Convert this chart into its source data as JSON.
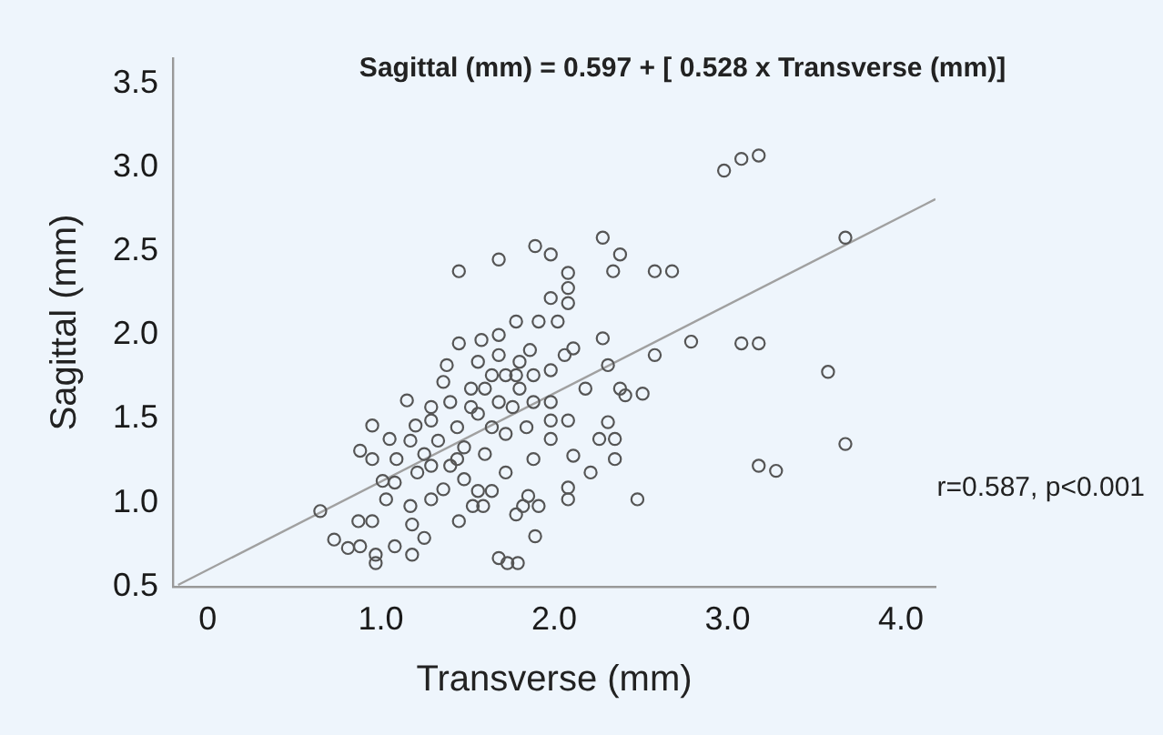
{
  "chart_data": {
    "type": "scatter",
    "title": "Sagittal (mm) = 0.597 + [ 0.528 x Transverse (mm)]",
    "xlabel": "Transverse (mm)",
    "ylabel": "Sagittal (mm)",
    "annotations": [
      "r=0.587, p<0.001"
    ],
    "xlim": [
      -0.2,
      4.2
    ],
    "xticks": [
      0,
      {
        "value": 1,
        "label": "1.0"
      },
      {
        "value": 2,
        "label": "2.0"
      },
      {
        "value": 3,
        "label": "3.0"
      },
      {
        "value": 4,
        "label": "4.0"
      }
    ],
    "ylim": [
      0.5,
      3.65
    ],
    "yticks": [
      0.5,
      {
        "value": 1,
        "label": "1.0"
      },
      1.5,
      {
        "value": 2,
        "label": "2.0"
      },
      2.5,
      {
        "value": 3,
        "label": "3.0"
      },
      3.5
    ],
    "grid": false,
    "legend": false,
    "marker": "circle",
    "series": [
      {
        "color": "#555555",
        "x": [
          2.98,
          3.08,
          3.18,
          3.68,
          1.45,
          1.68,
          1.89,
          1.98,
          2.08,
          2.28,
          2.38,
          2.34,
          2.58,
          2.68,
          2.08,
          1.98,
          2.08,
          2.79,
          3.08,
          3.18,
          2.58,
          2.28,
          2.31,
          3.58,
          3.68,
          3.18,
          3.28,
          2.48,
          2.18,
          2.38,
          2.51,
          2.41,
          2.31,
          2.26,
          2.35,
          2.35,
          2.11,
          2.21,
          2.08,
          2.08,
          1.91,
          1.82,
          1.85,
          1.78,
          1.89,
          1.68,
          1.73,
          1.79,
          1.45,
          1.53,
          1.59,
          0.65,
          0.73,
          0.81,
          0.88,
          0.97,
          0.97,
          1.08,
          1.18,
          1.25,
          1.18,
          0.87,
          0.95,
          1.03,
          1.01,
          1.08,
          0.88,
          0.95,
          0.95,
          1.05,
          1.15,
          1.2,
          1.29,
          1.38,
          1.45,
          1.58,
          1.68,
          1.78,
          1.91,
          2.02,
          1.86,
          1.98,
          2.11,
          2.06,
          1.98,
          1.98,
          2.08,
          1.98,
          1.88,
          1.72,
          1.64,
          1.56,
          1.48,
          1.36,
          1.29,
          1.21,
          1.17,
          1.29,
          1.33,
          1.44,
          1.56,
          1.68,
          1.8,
          1.88,
          1.64,
          1.52,
          1.4,
          1.29,
          1.48,
          1.6,
          1.72,
          1.84,
          1.76,
          1.56,
          1.68,
          1.8,
          1.4,
          1.25,
          1.17,
          1.36,
          1.52,
          1.64,
          1.78,
          1.44,
          1.09,
          1.6,
          1.72,
          1.88
        ],
        "values": [
          2.98,
          3.05,
          3.07,
          2.58,
          2.38,
          2.45,
          2.53,
          2.48,
          2.37,
          2.58,
          2.48,
          2.38,
          2.38,
          2.38,
          2.28,
          2.22,
          2.19,
          1.96,
          1.95,
          1.95,
          1.88,
          1.98,
          1.82,
          1.78,
          1.35,
          1.22,
          1.19,
          1.02,
          1.68,
          1.68,
          1.65,
          1.64,
          1.48,
          1.38,
          1.38,
          1.26,
          1.28,
          1.18,
          1.09,
          1.02,
          0.98,
          0.98,
          1.04,
          0.93,
          0.8,
          0.67,
          0.64,
          0.64,
          0.89,
          0.98,
          0.98,
          0.95,
          0.78,
          0.73,
          0.74,
          0.64,
          0.69,
          0.74,
          0.69,
          0.79,
          0.87,
          0.89,
          0.89,
          1.02,
          1.13,
          1.12,
          1.31,
          1.26,
          1.46,
          1.38,
          1.61,
          1.46,
          1.57,
          1.82,
          1.95,
          1.97,
          2.0,
          2.08,
          2.08,
          2.08,
          1.91,
          1.79,
          1.92,
          1.88,
          1.6,
          1.49,
          1.49,
          1.38,
          1.26,
          1.18,
          1.07,
          1.07,
          1.14,
          1.08,
          1.22,
          1.18,
          0.98,
          1.02,
          1.37,
          1.45,
          1.53,
          1.6,
          1.68,
          1.76,
          1.76,
          1.68,
          1.6,
          1.49,
          1.33,
          1.29,
          1.41,
          1.45,
          1.57,
          1.84,
          1.88,
          1.84,
          1.22,
          1.29,
          1.37,
          1.72,
          1.57,
          1.45,
          1.76,
          1.26,
          1.26,
          1.68,
          1.76,
          1.6
        ]
      },
      {
        "type": "line",
        "color": "#a0a0a0",
        "marker": "none",
        "x": [
          -0.17,
          4.2
        ],
        "values": [
          0.51,
          2.81
        ]
      }
    ]
  }
}
